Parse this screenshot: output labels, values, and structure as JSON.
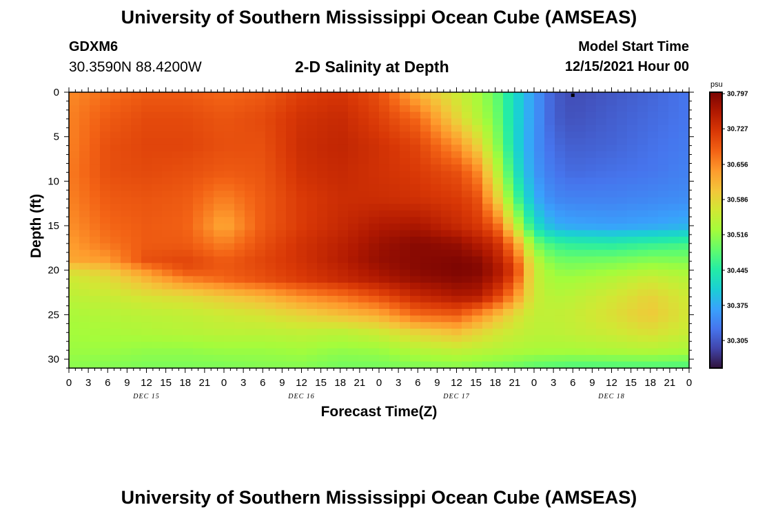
{
  "page": {
    "title": "University of Southern Mississippi Ocean Cube (AMSEAS)",
    "station": "GDXM6",
    "coords": "30.3590N  88.4200W",
    "chart_title": "2-D Salinity at Depth",
    "start_label": "Model Start Time",
    "start_value": "12/15/2021 Hour 00",
    "title_repeat": "University of Southern Mississippi Ocean Cube (AMSEAS)"
  },
  "chart_data": {
    "type": "heatmap",
    "title": "2-D Salinity at Depth",
    "xlabel": "Forecast Time(Z)",
    "ylabel": "Depth (ft)",
    "x_unit": "hours since 12/15/2021 00Z",
    "xlim": [
      0,
      96
    ],
    "ylim": [
      0,
      31
    ],
    "x_tick_values": [
      0,
      3,
      6,
      9,
      12,
      15,
      18,
      21,
      24,
      27,
      30,
      33,
      36,
      39,
      42,
      45,
      48,
      51,
      54,
      57,
      60,
      63,
      66,
      69,
      72,
      75,
      78,
      81,
      84,
      87,
      90,
      93,
      96
    ],
    "x_tick_labels": [
      "0",
      "3",
      "6",
      "9",
      "12",
      "15",
      "18",
      "21",
      "0",
      "3",
      "6",
      "9",
      "12",
      "15",
      "18",
      "21",
      "0",
      "3",
      "6",
      "9",
      "12",
      "15",
      "18",
      "21",
      "0",
      "3",
      "6",
      "9",
      "12",
      "15",
      "18",
      "21",
      "0"
    ],
    "day_labels": [
      {
        "label": "DEC 15",
        "x": 12
      },
      {
        "label": "DEC 16",
        "x": 36
      },
      {
        "label": "DEC 17",
        "x": 60
      },
      {
        "label": "DEC 18",
        "x": 84
      }
    ],
    "y_tick_values": [
      0,
      5,
      10,
      15,
      20,
      25,
      30
    ],
    "y_tick_labels": [
      "0",
      "5",
      "10",
      "15",
      "20",
      "25",
      "30"
    ],
    "colorbar": {
      "unit": "psu",
      "range": [
        30.25,
        30.8
      ],
      "tick_labels": [
        "30.797",
        "30.727",
        "30.656",
        "30.586",
        "30.516",
        "30.445",
        "30.375",
        "30.305"
      ],
      "tick_values": [
        30.797,
        30.727,
        30.656,
        30.586,
        30.516,
        30.445,
        30.375,
        30.305
      ],
      "colormap": [
        "#30123b",
        "#4145ab",
        "#4675ed",
        "#39a2fc",
        "#1bcfd4",
        "#24eca6",
        "#61fc6c",
        "#a4fc3b",
        "#d1e834",
        "#f3c63a",
        "#fe9b2d",
        "#f36315",
        "#d93806",
        "#b11901",
        "#7a0402"
      ]
    },
    "marker": {
      "x": 78,
      "y": 0.3
    },
    "depths": [
      0,
      3,
      6,
      9,
      12,
      15,
      17,
      19,
      20,
      21,
      23,
      25,
      27,
      29,
      31
    ],
    "times": [
      0,
      6,
      12,
      18,
      24,
      30,
      36,
      42,
      48,
      54,
      60,
      63,
      66,
      69,
      72,
      75,
      78,
      84,
      90,
      96
    ],
    "salinity": [
      [
        30.655,
        30.675,
        30.69,
        30.69,
        30.68,
        30.69,
        30.715,
        30.725,
        30.7,
        30.62,
        30.56,
        30.53,
        30.49,
        30.42,
        30.36,
        30.31,
        30.295,
        30.305,
        30.315,
        30.33
      ],
      [
        30.66,
        30.69,
        30.705,
        30.705,
        30.695,
        30.705,
        30.73,
        30.74,
        30.715,
        30.68,
        30.59,
        30.545,
        30.5,
        30.42,
        30.36,
        30.31,
        30.3,
        30.31,
        30.32,
        30.33
      ],
      [
        30.66,
        30.7,
        30.71,
        30.71,
        30.7,
        30.7,
        30.735,
        30.745,
        30.73,
        30.71,
        30.65,
        30.6,
        30.52,
        30.42,
        30.355,
        30.32,
        30.31,
        30.315,
        30.325,
        30.335
      ],
      [
        30.665,
        30.7,
        30.705,
        30.7,
        30.69,
        30.695,
        30.73,
        30.74,
        30.73,
        30.72,
        30.7,
        30.665,
        30.56,
        30.44,
        30.36,
        30.33,
        30.32,
        30.325,
        30.33,
        30.34
      ],
      [
        30.66,
        30.69,
        30.695,
        30.69,
        30.66,
        30.69,
        30.72,
        30.735,
        30.735,
        30.73,
        30.72,
        30.705,
        30.61,
        30.48,
        30.38,
        30.345,
        30.34,
        30.34,
        30.345,
        30.35
      ],
      [
        30.65,
        30.68,
        30.69,
        30.685,
        30.63,
        30.69,
        30.72,
        30.74,
        30.76,
        30.765,
        30.74,
        30.725,
        30.69,
        30.56,
        30.43,
        30.38,
        30.37,
        30.365,
        30.37,
        30.38
      ],
      [
        30.64,
        30.67,
        30.69,
        30.69,
        30.66,
        30.7,
        30.73,
        30.75,
        30.775,
        30.79,
        30.78,
        30.76,
        30.74,
        30.65,
        30.5,
        30.46,
        30.45,
        30.445,
        30.455,
        30.465
      ],
      [
        30.63,
        30.64,
        30.7,
        30.71,
        30.69,
        30.71,
        30.73,
        30.755,
        30.78,
        30.79,
        30.795,
        30.79,
        30.76,
        30.7,
        30.55,
        30.5,
        30.495,
        30.5,
        30.51,
        30.505
      ],
      [
        30.58,
        30.6,
        30.65,
        30.7,
        30.69,
        30.705,
        30.725,
        30.745,
        30.77,
        30.79,
        30.797,
        30.795,
        30.77,
        30.72,
        30.56,
        30.515,
        30.51,
        30.52,
        30.535,
        30.525
      ],
      [
        30.56,
        30.58,
        30.62,
        30.66,
        30.68,
        30.7,
        30.72,
        30.74,
        30.76,
        30.78,
        30.79,
        30.785,
        30.76,
        30.7,
        30.56,
        30.525,
        30.525,
        30.54,
        30.56,
        30.54
      ],
      [
        30.545,
        30.555,
        30.57,
        30.58,
        30.6,
        30.62,
        30.65,
        30.67,
        30.7,
        30.74,
        30.76,
        30.76,
        30.72,
        30.65,
        30.56,
        30.54,
        30.545,
        30.565,
        30.59,
        30.56
      ],
      [
        30.53,
        30.54,
        30.545,
        30.55,
        30.56,
        30.57,
        30.59,
        30.61,
        30.63,
        30.68,
        30.69,
        30.66,
        30.62,
        30.58,
        30.55,
        30.55,
        30.555,
        30.575,
        30.6,
        30.565
      ],
      [
        30.525,
        30.53,
        30.535,
        30.54,
        30.545,
        30.545,
        30.55,
        30.545,
        30.56,
        30.59,
        30.61,
        30.59,
        30.57,
        30.555,
        30.545,
        30.545,
        30.55,
        30.56,
        30.575,
        30.555
      ],
      [
        30.52,
        30.52,
        30.515,
        30.515,
        30.52,
        30.52,
        30.525,
        30.515,
        30.52,
        30.54,
        30.55,
        30.545,
        30.54,
        30.535,
        30.53,
        30.53,
        30.53,
        30.535,
        30.54,
        30.53
      ],
      [
        30.51,
        30.505,
        30.5,
        30.5,
        30.5,
        30.505,
        30.505,
        30.495,
        30.495,
        30.5,
        30.505,
        30.5,
        30.495,
        30.49,
        30.48,
        30.475,
        30.47,
        30.47,
        30.47,
        30.47
      ]
    ]
  }
}
